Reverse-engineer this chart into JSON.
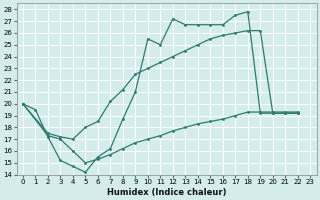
{
  "xlabel": "Humidex (Indice chaleur)",
  "bg_color": "#d4ecec",
  "grid_color": "#b8d8d8",
  "line_color": "#2d7b6e",
  "xlim": [
    -0.5,
    23.5
  ],
  "ylim": [
    14,
    28.5
  ],
  "xticks": [
    0,
    1,
    2,
    3,
    4,
    5,
    6,
    7,
    8,
    9,
    10,
    11,
    12,
    13,
    14,
    15,
    16,
    17,
    18,
    19,
    20,
    21,
    22,
    23
  ],
  "yticks": [
    14,
    15,
    16,
    17,
    18,
    19,
    20,
    21,
    22,
    23,
    24,
    25,
    26,
    27,
    28
  ],
  "curve1_x": [
    0,
    1,
    2,
    3,
    4,
    5,
    6,
    7,
    8,
    9,
    10,
    11,
    12,
    13,
    14,
    15,
    16,
    17,
    18,
    19,
    20,
    21,
    22
  ],
  "curve1_y": [
    20.0,
    19.5,
    17.2,
    15.2,
    14.7,
    14.2,
    15.5,
    16.2,
    18.7,
    21.0,
    25.5,
    25.0,
    27.2,
    26.7,
    26.7,
    26.7,
    26.7,
    27.5,
    27.8,
    19.2,
    19.2,
    19.2,
    19.2
  ],
  "curve2_x": [
    0,
    2,
    3,
    4,
    5,
    6,
    7,
    8,
    9,
    10,
    11,
    12,
    13,
    14,
    15,
    16,
    17,
    18,
    19,
    20,
    21,
    22
  ],
  "curve2_y": [
    20.0,
    17.5,
    17.2,
    17.0,
    18.0,
    18.5,
    20.2,
    21.2,
    22.5,
    23.0,
    23.5,
    24.0,
    24.5,
    25.0,
    25.5,
    25.8,
    26.0,
    26.2,
    26.2,
    19.2,
    19.2,
    19.2
  ],
  "curve3_x": [
    0,
    2,
    3,
    4,
    5,
    6,
    7,
    8,
    9,
    10,
    11,
    12,
    13,
    14,
    15,
    16,
    17,
    18,
    19,
    20,
    21,
    22
  ],
  "curve3_y": [
    20.0,
    17.3,
    17.0,
    16.0,
    15.0,
    15.3,
    15.7,
    16.2,
    16.7,
    17.0,
    17.3,
    17.7,
    18.0,
    18.3,
    18.5,
    18.7,
    19.0,
    19.3,
    19.3,
    19.3,
    19.3,
    19.3
  ]
}
